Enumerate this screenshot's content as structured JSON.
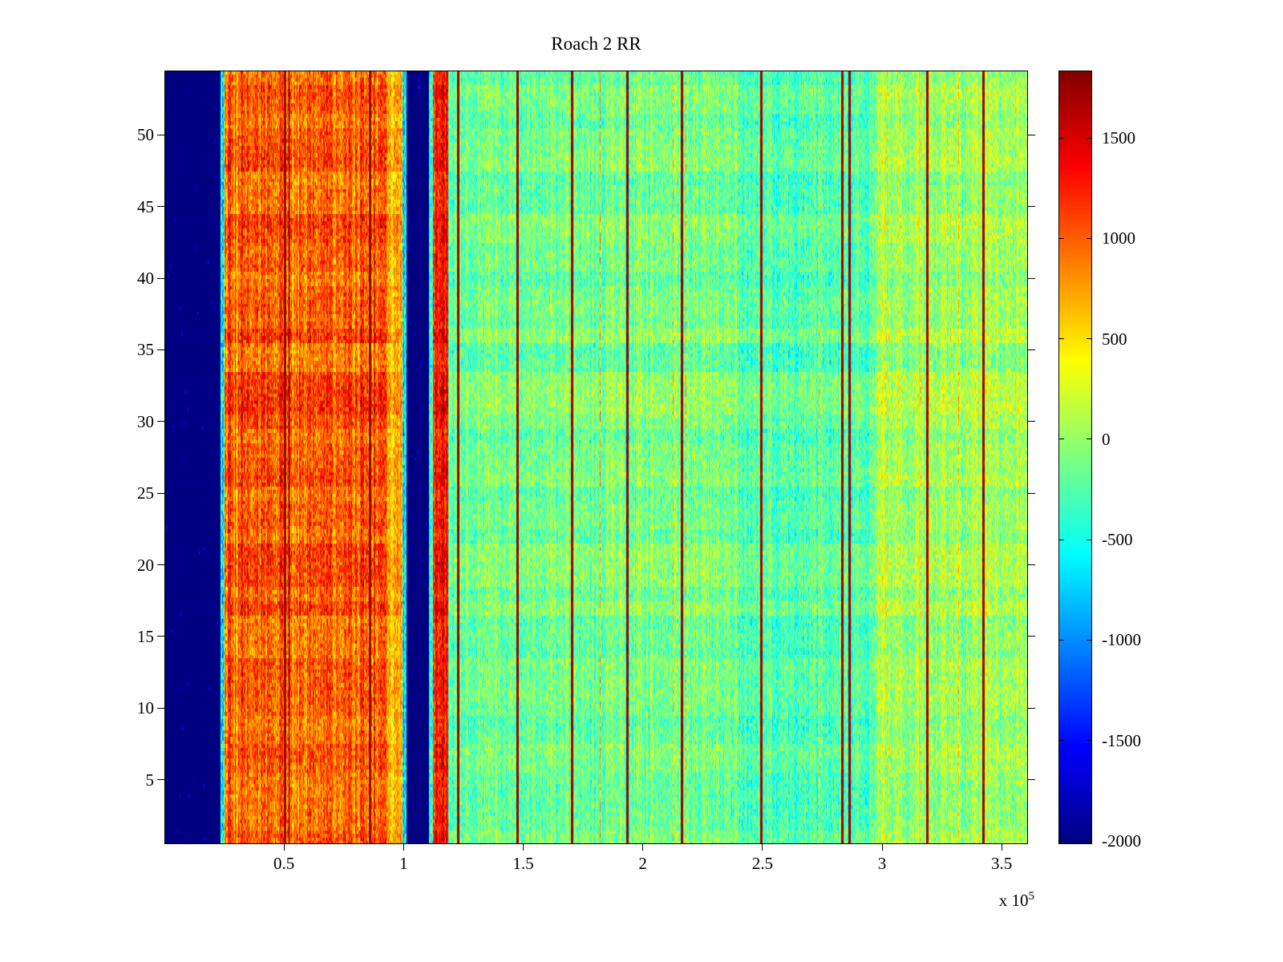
{
  "colors": {
    "background": "#ffffff",
    "axis": "#000000",
    "text": "#000000"
  },
  "chart_data": {
    "type": "heatmap",
    "title": "Roach 2 RR",
    "colormap": "jet",
    "x_range": [
      0,
      361000
    ],
    "y_range": [
      0.5,
      54.5
    ],
    "rows": 54,
    "clim": [
      -2016,
      1836
    ],
    "grid": false,
    "legend": "colorbar-right",
    "x_ticks": [
      {
        "value": 50000,
        "label": "0.5"
      },
      {
        "value": 100000,
        "label": "1"
      },
      {
        "value": 150000,
        "label": "1.5"
      },
      {
        "value": 200000,
        "label": "2"
      },
      {
        "value": 250000,
        "label": "2.5"
      },
      {
        "value": 300000,
        "label": "3"
      },
      {
        "value": 350000,
        "label": "3.5"
      }
    ],
    "x_exponent": {
      "prefix": "x 10",
      "power": "5"
    },
    "y_ticks": [
      {
        "value": 5,
        "label": "5"
      },
      {
        "value": 10,
        "label": "10"
      },
      {
        "value": 15,
        "label": "15"
      },
      {
        "value": 20,
        "label": "20"
      },
      {
        "value": 25,
        "label": "25"
      },
      {
        "value": 30,
        "label": "30"
      },
      {
        "value": 35,
        "label": "35"
      },
      {
        "value": 40,
        "label": "40"
      },
      {
        "value": 45,
        "label": "45"
      },
      {
        "value": 50,
        "label": "50"
      }
    ],
    "colorbar_ticks": [
      {
        "value": 1500,
        "label": "1500"
      },
      {
        "value": 1000,
        "label": "1000"
      },
      {
        "value": 500,
        "label": "500"
      },
      {
        "value": 0,
        "label": "0"
      },
      {
        "value": -500,
        "label": "-500"
      },
      {
        "value": -1000,
        "label": "-1000"
      },
      {
        "value": -1500,
        "label": "-1500"
      },
      {
        "value": -2000,
        "label": "-2000"
      }
    ],
    "value_model": {
      "sub_rows": 216,
      "bands": [
        {
          "x0": 0,
          "x1": 23500,
          "base": -2010,
          "noise": 25,
          "col_amp": 10,
          "row_amp": 15
        },
        {
          "x0": 23500,
          "x1": 25200,
          "base": -500,
          "noise": 450,
          "col_amp": 300,
          "row_amp": 100
        },
        {
          "x0": 25200,
          "x1": 93000,
          "base": 1030,
          "noise": 380,
          "col_amp": 330,
          "row_amp": 160
        },
        {
          "x0": 93000,
          "x1": 99500,
          "base": 640,
          "noise": 340,
          "col_amp": 260,
          "row_amp": 120
        },
        {
          "x0": 99500,
          "x1": 101200,
          "base": -600,
          "noise": 380,
          "col_amp": 220,
          "row_amp": 60
        },
        {
          "x0": 101200,
          "x1": 110600,
          "base": -2010,
          "noise": 25,
          "col_amp": 10,
          "row_amp": 15
        },
        {
          "x0": 110600,
          "x1": 112200,
          "base": -350,
          "noise": 380,
          "col_amp": 220,
          "row_amp": 60
        },
        {
          "x0": 112200,
          "x1": 118800,
          "base": 1340,
          "noise": 330,
          "col_amp": 220,
          "row_amp": 110
        },
        {
          "x0": 118800,
          "x1": 240000,
          "base": -120,
          "noise": 330,
          "col_amp": 210,
          "row_amp": 115
        },
        {
          "x0": 240000,
          "x1": 297000,
          "base": -230,
          "noise": 320,
          "col_amp": 200,
          "row_amp": 115
        },
        {
          "x0": 297000,
          "x1": 361000,
          "base": 60,
          "noise": 340,
          "col_amp": 240,
          "row_amp": 115
        }
      ],
      "hot_lines": {
        "x": [
          50500,
          86000,
          123000,
          147500,
          170500,
          193500,
          216500,
          249500,
          283500,
          286500,
          319000,
          342500
        ],
        "half_width": 500,
        "value": 1730,
        "noise": 140
      },
      "hot_column_rate": 0.012,
      "hot_column_boost": 620,
      "blue_speckle_rate": 0.003,
      "blue_speckle_boost": 550
    }
  }
}
